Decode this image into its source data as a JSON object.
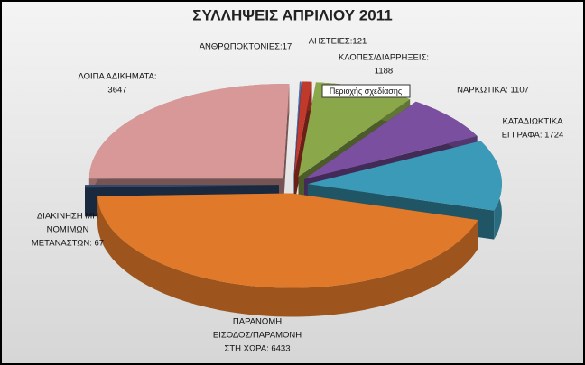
{
  "chart_data": {
    "type": "pie3d",
    "title": "ΣΥΛΛΗΨΕΙΣ ΑΠΡΙΛΙΟΥ 2011",
    "values": [
      17,
      121,
      1188,
      1107,
      1724,
      6433,
      67,
      3647
    ],
    "labels": [
      [
        "ΑΝΘΡΩΠΟΚΤΟΝΙΕΣ:17"
      ],
      [
        "ΛΗΣΤΕΙΕΣ:121"
      ],
      [
        "ΚΛΟΠΕΣ/ΔΙΑΡΡΗΞΕΙΣ:",
        "1188"
      ],
      [
        "ΝΑΡΚΩΤΙΚΑ: 1107"
      ],
      [
        "ΚΑΤΑΔΙΩΚΤΙΚΑ",
        "ΕΓΓΡΑΦΑ: 1724"
      ],
      [
        "ΠΑΡΑΝΟΜΗ",
        "ΕΙΣΟΔΟΣ/ΠΑΡΑΜΟΝΗ",
        "ΣΤΗ ΧΩΡΑ: 6433"
      ],
      [
        "ΔΙΑΚΙΝΗΣΗ ΜΗ",
        "ΝΟΜΙΜΩΝ",
        "ΜΕΤΑΝΑΣΤΩΝ: 67"
      ],
      [
        "ΛΟΙΠΑ ΑΔΙΚΗΜΑΤΑ:",
        "3647"
      ]
    ],
    "colors": [
      "#4a6fb0",
      "#c0392b",
      "#8aa84a",
      "#7a4fa0",
      "#3a9ab8",
      "#e07a2a",
      "#2f4a70",
      "#d89898"
    ],
    "tooltip": "Περιοχής σχεδίασης"
  }
}
